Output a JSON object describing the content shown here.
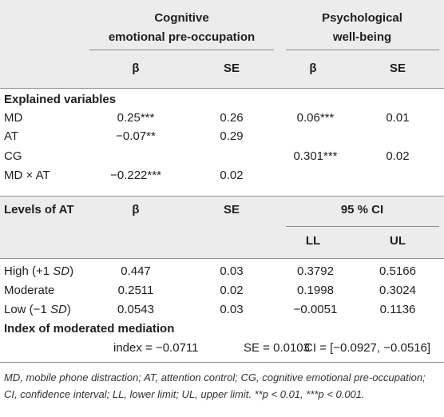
{
  "header": {
    "group1_line1": "Cognitive",
    "group1_line2": "emotional pre-occupation",
    "group2_line1": "Psychological",
    "group2_line2": "well-being",
    "beta": "β",
    "se": "SE"
  },
  "section1": {
    "title": "Explained variables",
    "rows": [
      {
        "label": "MD",
        "b1": "0.25***",
        "se1": "0.26",
        "b2": "0.06***",
        "se2": "0.01"
      },
      {
        "label": "AT",
        "b1": "−0.07**",
        "se1": "0.29",
        "b2": "",
        "se2": ""
      },
      {
        "label": "CG",
        "b1": "",
        "se1": "",
        "b2": "0.301***",
        "se2": "0.02"
      },
      {
        "label": "MD × AT",
        "b1": "−0.222***",
        "se1": "0.02",
        "b2": "",
        "se2": ""
      }
    ]
  },
  "section2": {
    "title": "Levels of AT",
    "beta": "β",
    "se": "SE",
    "ci": "95 % CI",
    "ll": "LL",
    "ul": "UL",
    "rows": [
      {
        "label": "High (+1 ",
        "label_it": "SD",
        "label_end": ")",
        "b": "0.447",
        "se": "0.03",
        "ll": "0.3792",
        "ul": "0.5166"
      },
      {
        "label": "Moderate",
        "label_it": "",
        "label_end": "",
        "b": "0.2511",
        "se": "0.02",
        "ll": "0.1998",
        "ul": "0.3024"
      },
      {
        "label": "Low (−1 ",
        "label_it": "SD",
        "label_end": ")",
        "b": "0.0543",
        "se": "0.03",
        "ll": "−0.0051",
        "ul": "0.1136"
      }
    ]
  },
  "section3": {
    "title": "Index of moderated mediation",
    "index": "index = −0.0711",
    "se": "SE = 0.0103",
    "ci": "CI = [−0.0927, −0.0516]"
  },
  "footnote": "MD, mobile phone distraction; AT, attention control; CG, cognitive emotional pre-occupation; CI, confidence interval; LL, lower limit; UL, upper limit. **p < 0.01, ***p < 0.001."
}
